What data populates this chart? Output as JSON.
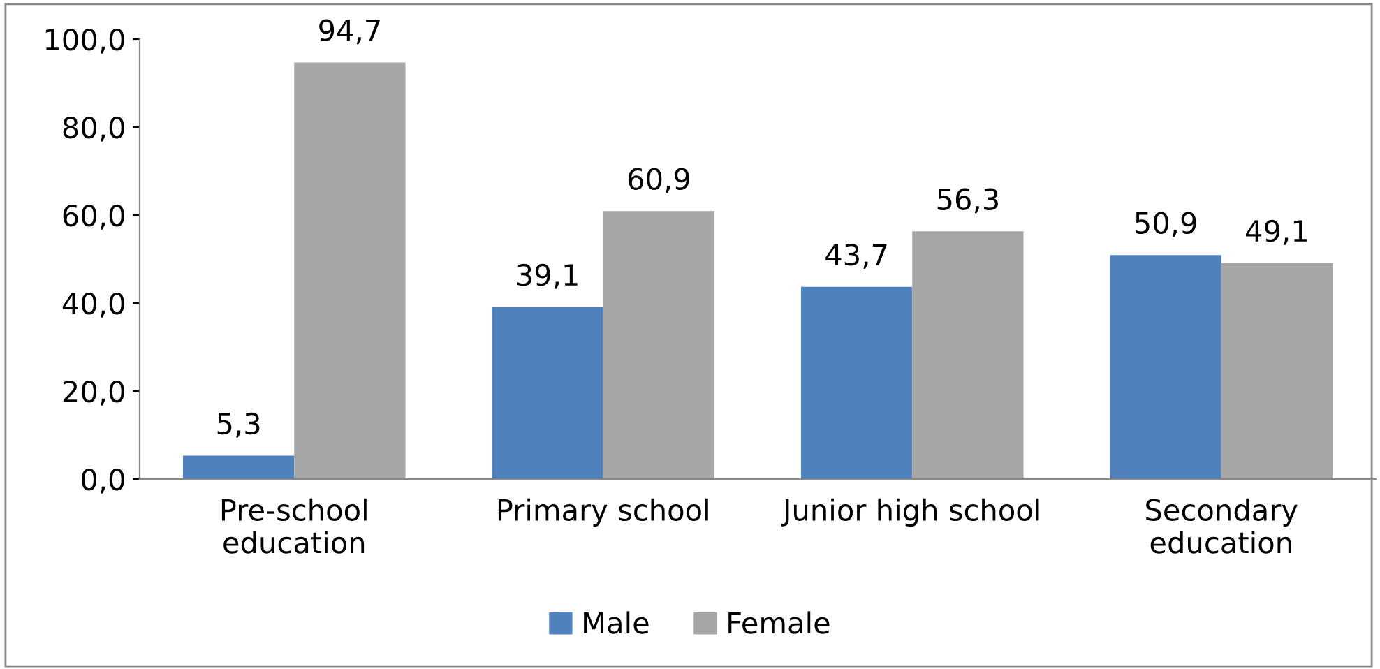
{
  "chart_data": {
    "type": "bar",
    "categories": [
      "Pre-school\neducation",
      "Primary school",
      "Junior high school",
      "Secondary\neducation"
    ],
    "series": [
      {
        "name": "Male",
        "color": "#4f81bd",
        "values": [
          5.3,
          39.1,
          43.7,
          50.9
        ],
        "value_labels": [
          "5,3",
          "39,1",
          "43,7",
          "50,9"
        ]
      },
      {
        "name": "Female",
        "color": "#a6a6a6",
        "values": [
          94.7,
          60.9,
          56.3,
          49.1
        ],
        "value_labels": [
          "94,7",
          "60,9",
          "56,3",
          "49,1"
        ]
      }
    ],
    "ylim": [
      0,
      100
    ],
    "yticks": [
      {
        "value": 0,
        "label": "0,0"
      },
      {
        "value": 20,
        "label": "20,0"
      },
      {
        "value": 40,
        "label": "40,0"
      },
      {
        "value": 60,
        "label": "60,0"
      },
      {
        "value": 80,
        "label": "80,0"
      },
      {
        "value": 100,
        "label": "100,0"
      }
    ],
    "grid": false,
    "legend": "bottom"
  }
}
